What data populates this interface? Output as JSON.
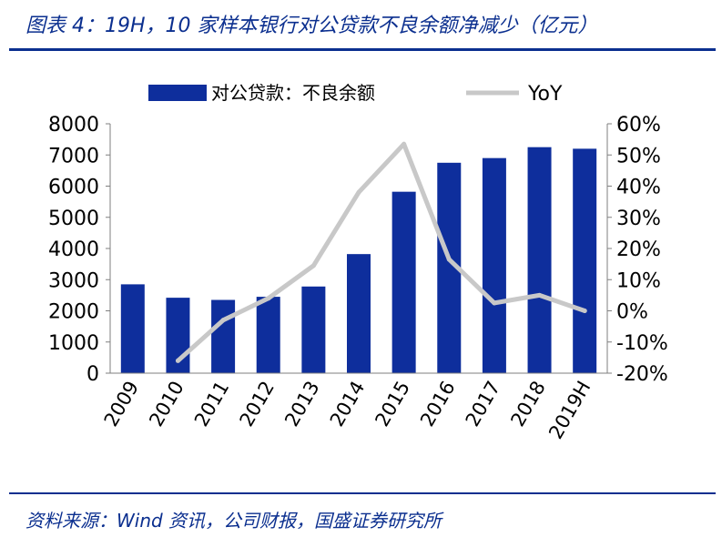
{
  "title": "图表 4：19H，10 家样本银行对公贷款不良余额净减少（亿元）",
  "source": "资料来源：Wind 资讯，公司财报，国盛证券研究所",
  "colors": {
    "bar": "#0e2e9c",
    "line": "#c8c8c8",
    "accent": "#0b2f8f"
  },
  "chart_data": {
    "type": "bar",
    "title": "",
    "categories": [
      "2009",
      "2010",
      "2011",
      "2012",
      "2013",
      "2014",
      "2015",
      "2016",
      "2017",
      "2018",
      "2019H"
    ],
    "series": [
      {
        "name": "对公贷款：不良余额",
        "type": "bar",
        "axis": "left",
        "values": [
          2850,
          2420,
          2350,
          2450,
          2780,
          3820,
          5820,
          6750,
          6900,
          7250,
          7200
        ]
      },
      {
        "name": "YoY",
        "type": "line",
        "axis": "right",
        "values": [
          null,
          -0.16,
          -0.03,
          0.04,
          0.145,
          0.38,
          0.535,
          0.165,
          0.025,
          0.05,
          0.0
        ]
      }
    ],
    "y_left": {
      "min": 0,
      "max": 8000,
      "ticks": [
        "0",
        "1000",
        "2000",
        "3000",
        "4000",
        "5000",
        "6000",
        "7000",
        "8000"
      ]
    },
    "y_right": {
      "min": -0.2,
      "max": 0.6,
      "ticks": [
        "-20%",
        "-10%",
        "0%",
        "10%",
        "20%",
        "30%",
        "40%",
        "50%",
        "60%"
      ]
    },
    "legend_position": "top"
  }
}
